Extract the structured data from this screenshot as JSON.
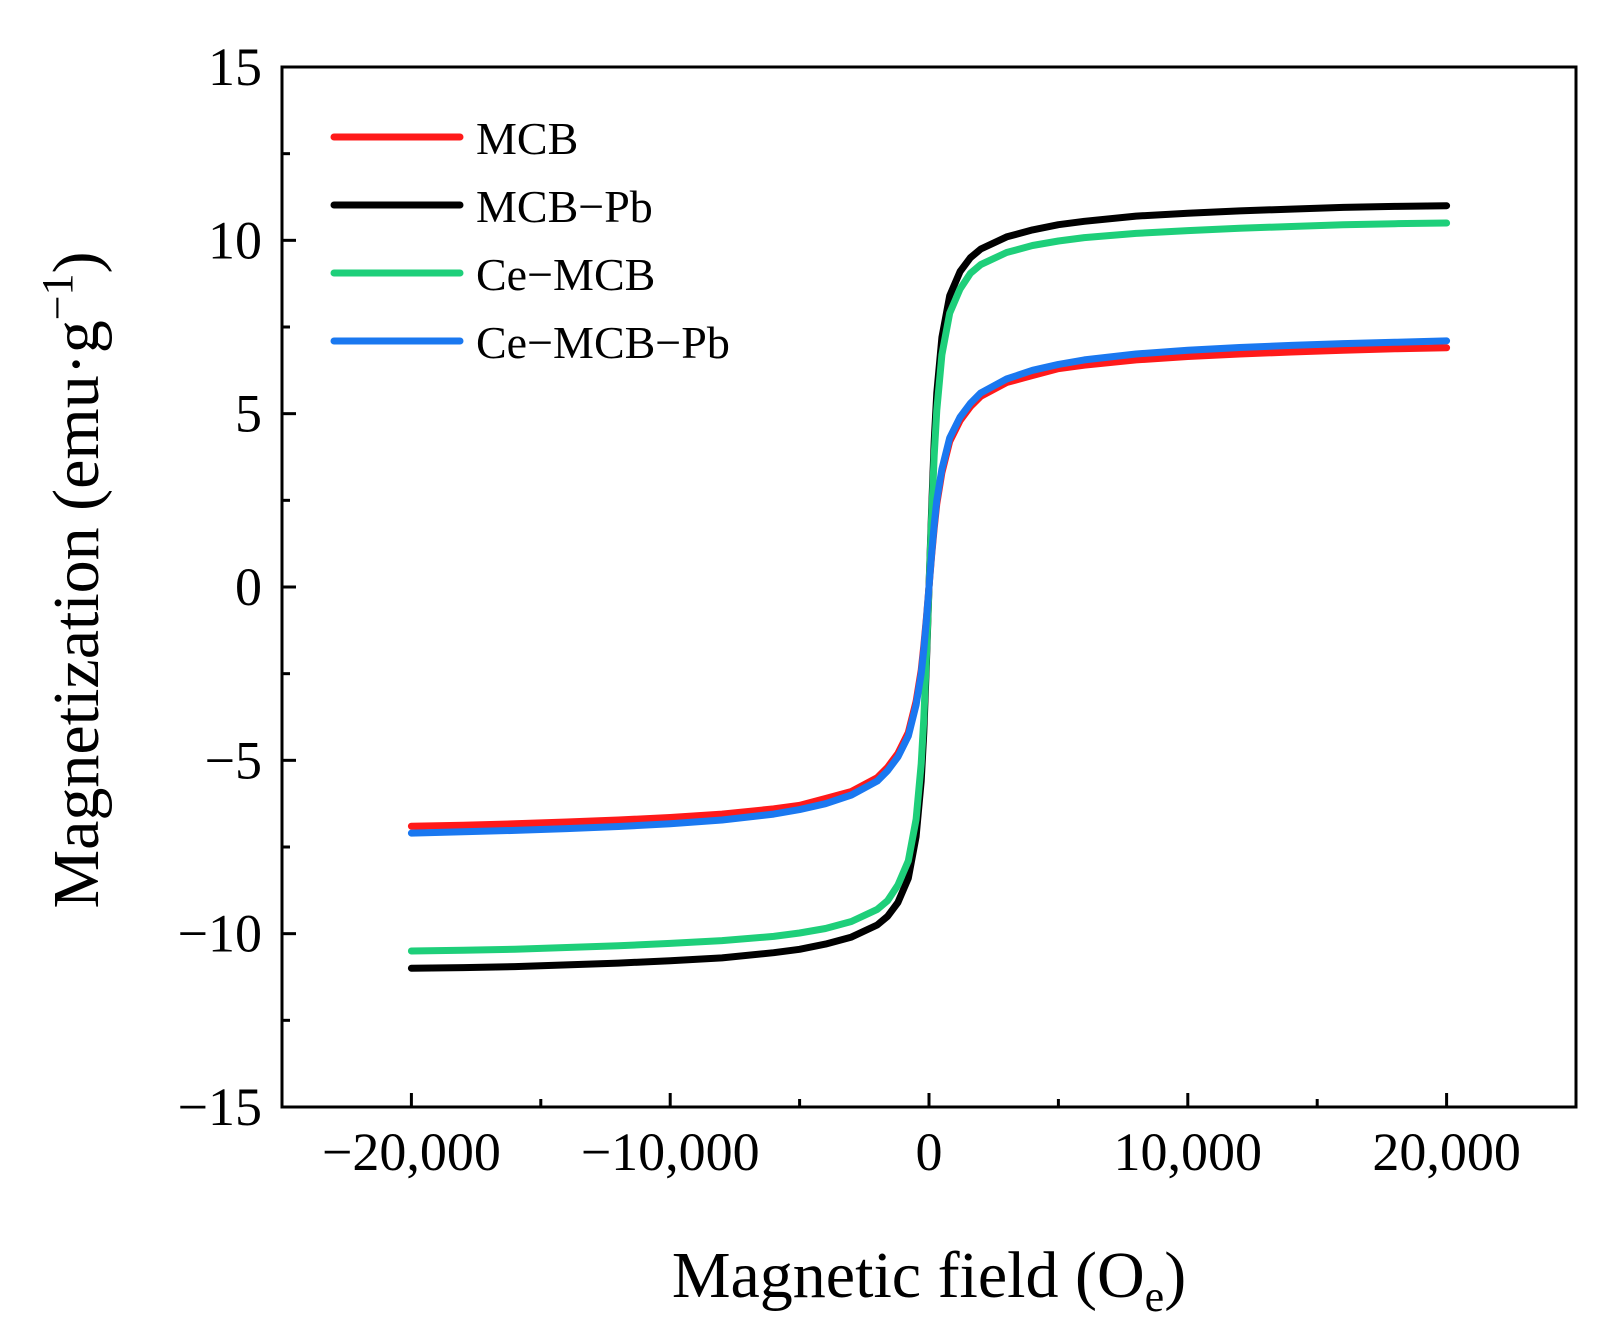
{
  "chart_data": {
    "type": "line",
    "title": "",
    "xlabel": {
      "main": "Magnetic field (O",
      "sub": "e",
      "close": ")"
    },
    "ylabel": {
      "main": "Magnetization (emu·g",
      "sup": "−1",
      "close": ")"
    },
    "xlim": [
      -25000,
      25000
    ],
    "ylim": [
      -15,
      15
    ],
    "xticks": [
      -20000,
      -10000,
      0,
      10000,
      20000
    ],
    "xtick_labels": [
      "−20,000",
      "−10,000",
      "0",
      "10,000",
      "20,000"
    ],
    "yticks": [
      -15,
      -10,
      -5,
      0,
      5,
      10,
      15
    ],
    "ytick_labels": [
      "−15",
      "−10",
      "−5",
      "0",
      "5",
      "10",
      "15"
    ],
    "grid": false,
    "legend_position": "top-left",
    "x": [
      0,
      100,
      200,
      300,
      500,
      800,
      1200,
      1600,
      2000,
      3000,
      4000,
      5000,
      6000,
      8000,
      10000,
      12000,
      14000,
      16000,
      18000,
      20000
    ],
    "series": [
      {
        "name": "MCB",
        "color": "#ff1a1a",
        "values": [
          0,
          0.9,
          1.7,
          2.4,
          3.3,
          4.2,
          4.8,
          5.2,
          5.5,
          5.9,
          6.1,
          6.3,
          6.4,
          6.55,
          6.65,
          6.72,
          6.78,
          6.83,
          6.87,
          6.9
        ]
      },
      {
        "name": "MCB−Pb",
        "color": "#000000",
        "values": [
          0,
          2.2,
          4.2,
          5.6,
          7.2,
          8.4,
          9.1,
          9.5,
          9.75,
          10.1,
          10.3,
          10.45,
          10.55,
          10.7,
          10.78,
          10.85,
          10.9,
          10.95,
          10.98,
          11.0
        ]
      },
      {
        "name": "Ce−MCB",
        "color": "#1ecf7a",
        "values": [
          0,
          2.0,
          3.8,
          5.1,
          6.7,
          7.9,
          8.6,
          9.05,
          9.3,
          9.65,
          9.85,
          9.98,
          10.08,
          10.2,
          10.28,
          10.35,
          10.4,
          10.45,
          10.48,
          10.5
        ]
      },
      {
        "name": "Ce−MCB−Pb",
        "color": "#1a78f0",
        "values": [
          0,
          0.95,
          1.8,
          2.5,
          3.4,
          4.3,
          4.9,
          5.3,
          5.6,
          6.0,
          6.25,
          6.42,
          6.55,
          6.72,
          6.83,
          6.91,
          6.97,
          7.02,
          7.06,
          7.1
        ]
      }
    ]
  }
}
